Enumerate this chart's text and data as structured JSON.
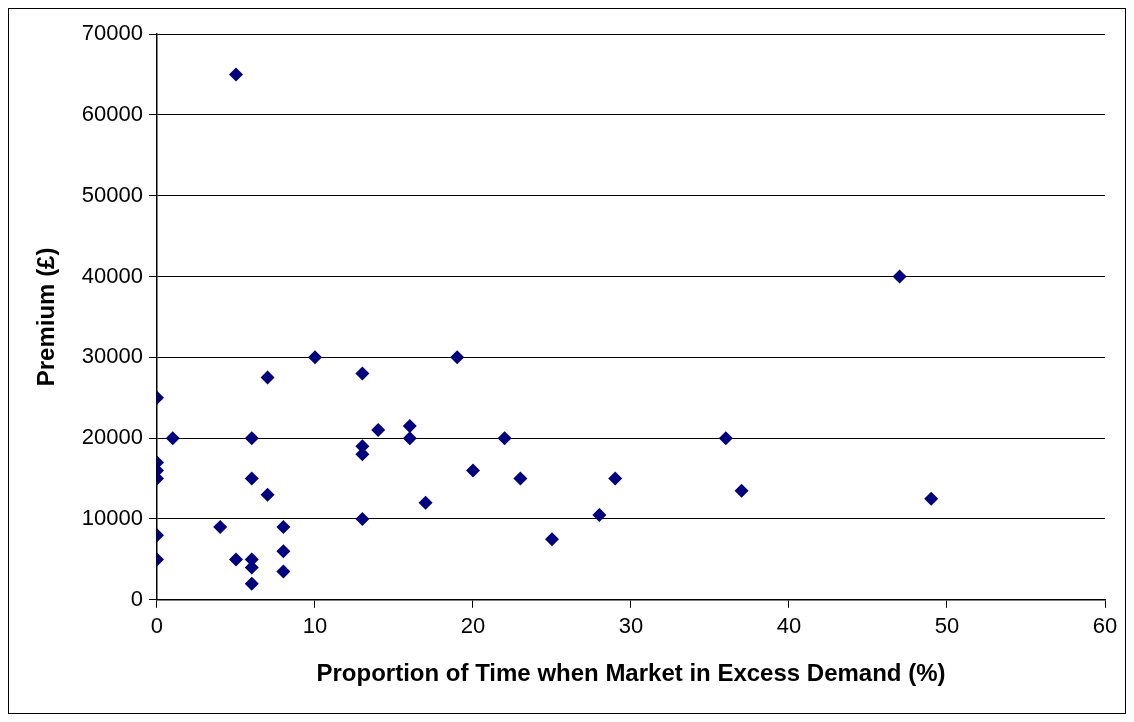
{
  "chart_data": {
    "type": "scatter",
    "xlabel": "Proportion of Time when Market in Excess Demand (%)",
    "ylabel": "Premium (£)",
    "xlim": [
      0,
      60
    ],
    "xticks": [
      0,
      10,
      20,
      30,
      40,
      50,
      60
    ],
    "ylim": [
      0,
      70000
    ],
    "yticks": [
      0,
      10000,
      20000,
      30000,
      40000,
      50000,
      60000,
      70000
    ],
    "grid": "y",
    "legend": false,
    "marker": "diamond",
    "series": [
      {
        "color": "#000080",
        "x": [
          0,
          0,
          0,
          0,
          0,
          0,
          1,
          4,
          5,
          5,
          6,
          6,
          6,
          6,
          6,
          7,
          7,
          8,
          8,
          8,
          10,
          13,
          13,
          13,
          13,
          14,
          16,
          16,
          17,
          19,
          20,
          22,
          23,
          25,
          28,
          29,
          36,
          37,
          47,
          49
        ],
        "values": [
          25000,
          17000,
          16000,
          15000,
          8000,
          5000,
          20000,
          9000,
          5000,
          65000,
          20000,
          15000,
          5000,
          4000,
          2000,
          27500,
          13000,
          9000,
          6000,
          3500,
          30000,
          28000,
          19000,
          18000,
          10000,
          21000,
          21500,
          20000,
          12000,
          30000,
          16000,
          20000,
          15000,
          7500,
          10500,
          15000,
          20000,
          13500,
          40000,
          12500
        ]
      }
    ]
  }
}
